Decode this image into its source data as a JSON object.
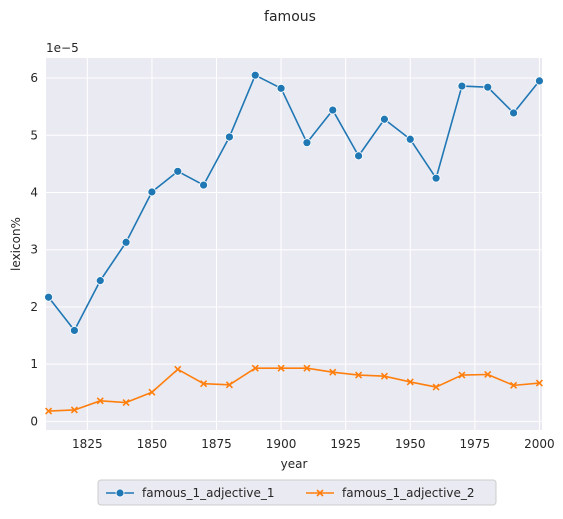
{
  "chart_data": {
    "type": "line",
    "title": "famous",
    "xlabel": "year",
    "ylabel": "lexicon%",
    "y_scale_label": "1e−5",
    "xlim": [
      1809,
      2001
    ],
    "ylim": [
      -0.15,
      6.35
    ],
    "x_ticks": [
      1825,
      1850,
      1875,
      1900,
      1925,
      1950,
      1975,
      2000
    ],
    "y_ticks": [
      0,
      1,
      2,
      3,
      4,
      5,
      6
    ],
    "grid": true,
    "legend_position": "bottom-center",
    "x": [
      1810,
      1820,
      1830,
      1840,
      1850,
      1860,
      1870,
      1880,
      1890,
      1900,
      1910,
      1920,
      1930,
      1940,
      1950,
      1960,
      1970,
      1980,
      1990,
      2000
    ],
    "series": [
      {
        "name": "famous_1_adjective_1",
        "color": "#1f77b4",
        "marker": "circle",
        "values": [
          2.17,
          1.59,
          2.46,
          3.13,
          4.01,
          4.37,
          4.13,
          4.97,
          6.05,
          5.82,
          4.87,
          5.44,
          4.64,
          5.28,
          4.93,
          4.25,
          5.86,
          5.84,
          5.39,
          5.95
        ]
      },
      {
        "name": "famous_1_adjective_2",
        "color": "#ff7f0e",
        "marker": "x",
        "values": [
          0.18,
          0.2,
          0.36,
          0.33,
          0.51,
          0.91,
          0.66,
          0.64,
          0.93,
          0.93,
          0.93,
          0.86,
          0.81,
          0.79,
          0.69,
          0.6,
          0.81,
          0.82,
          0.63,
          0.67
        ]
      }
    ]
  }
}
